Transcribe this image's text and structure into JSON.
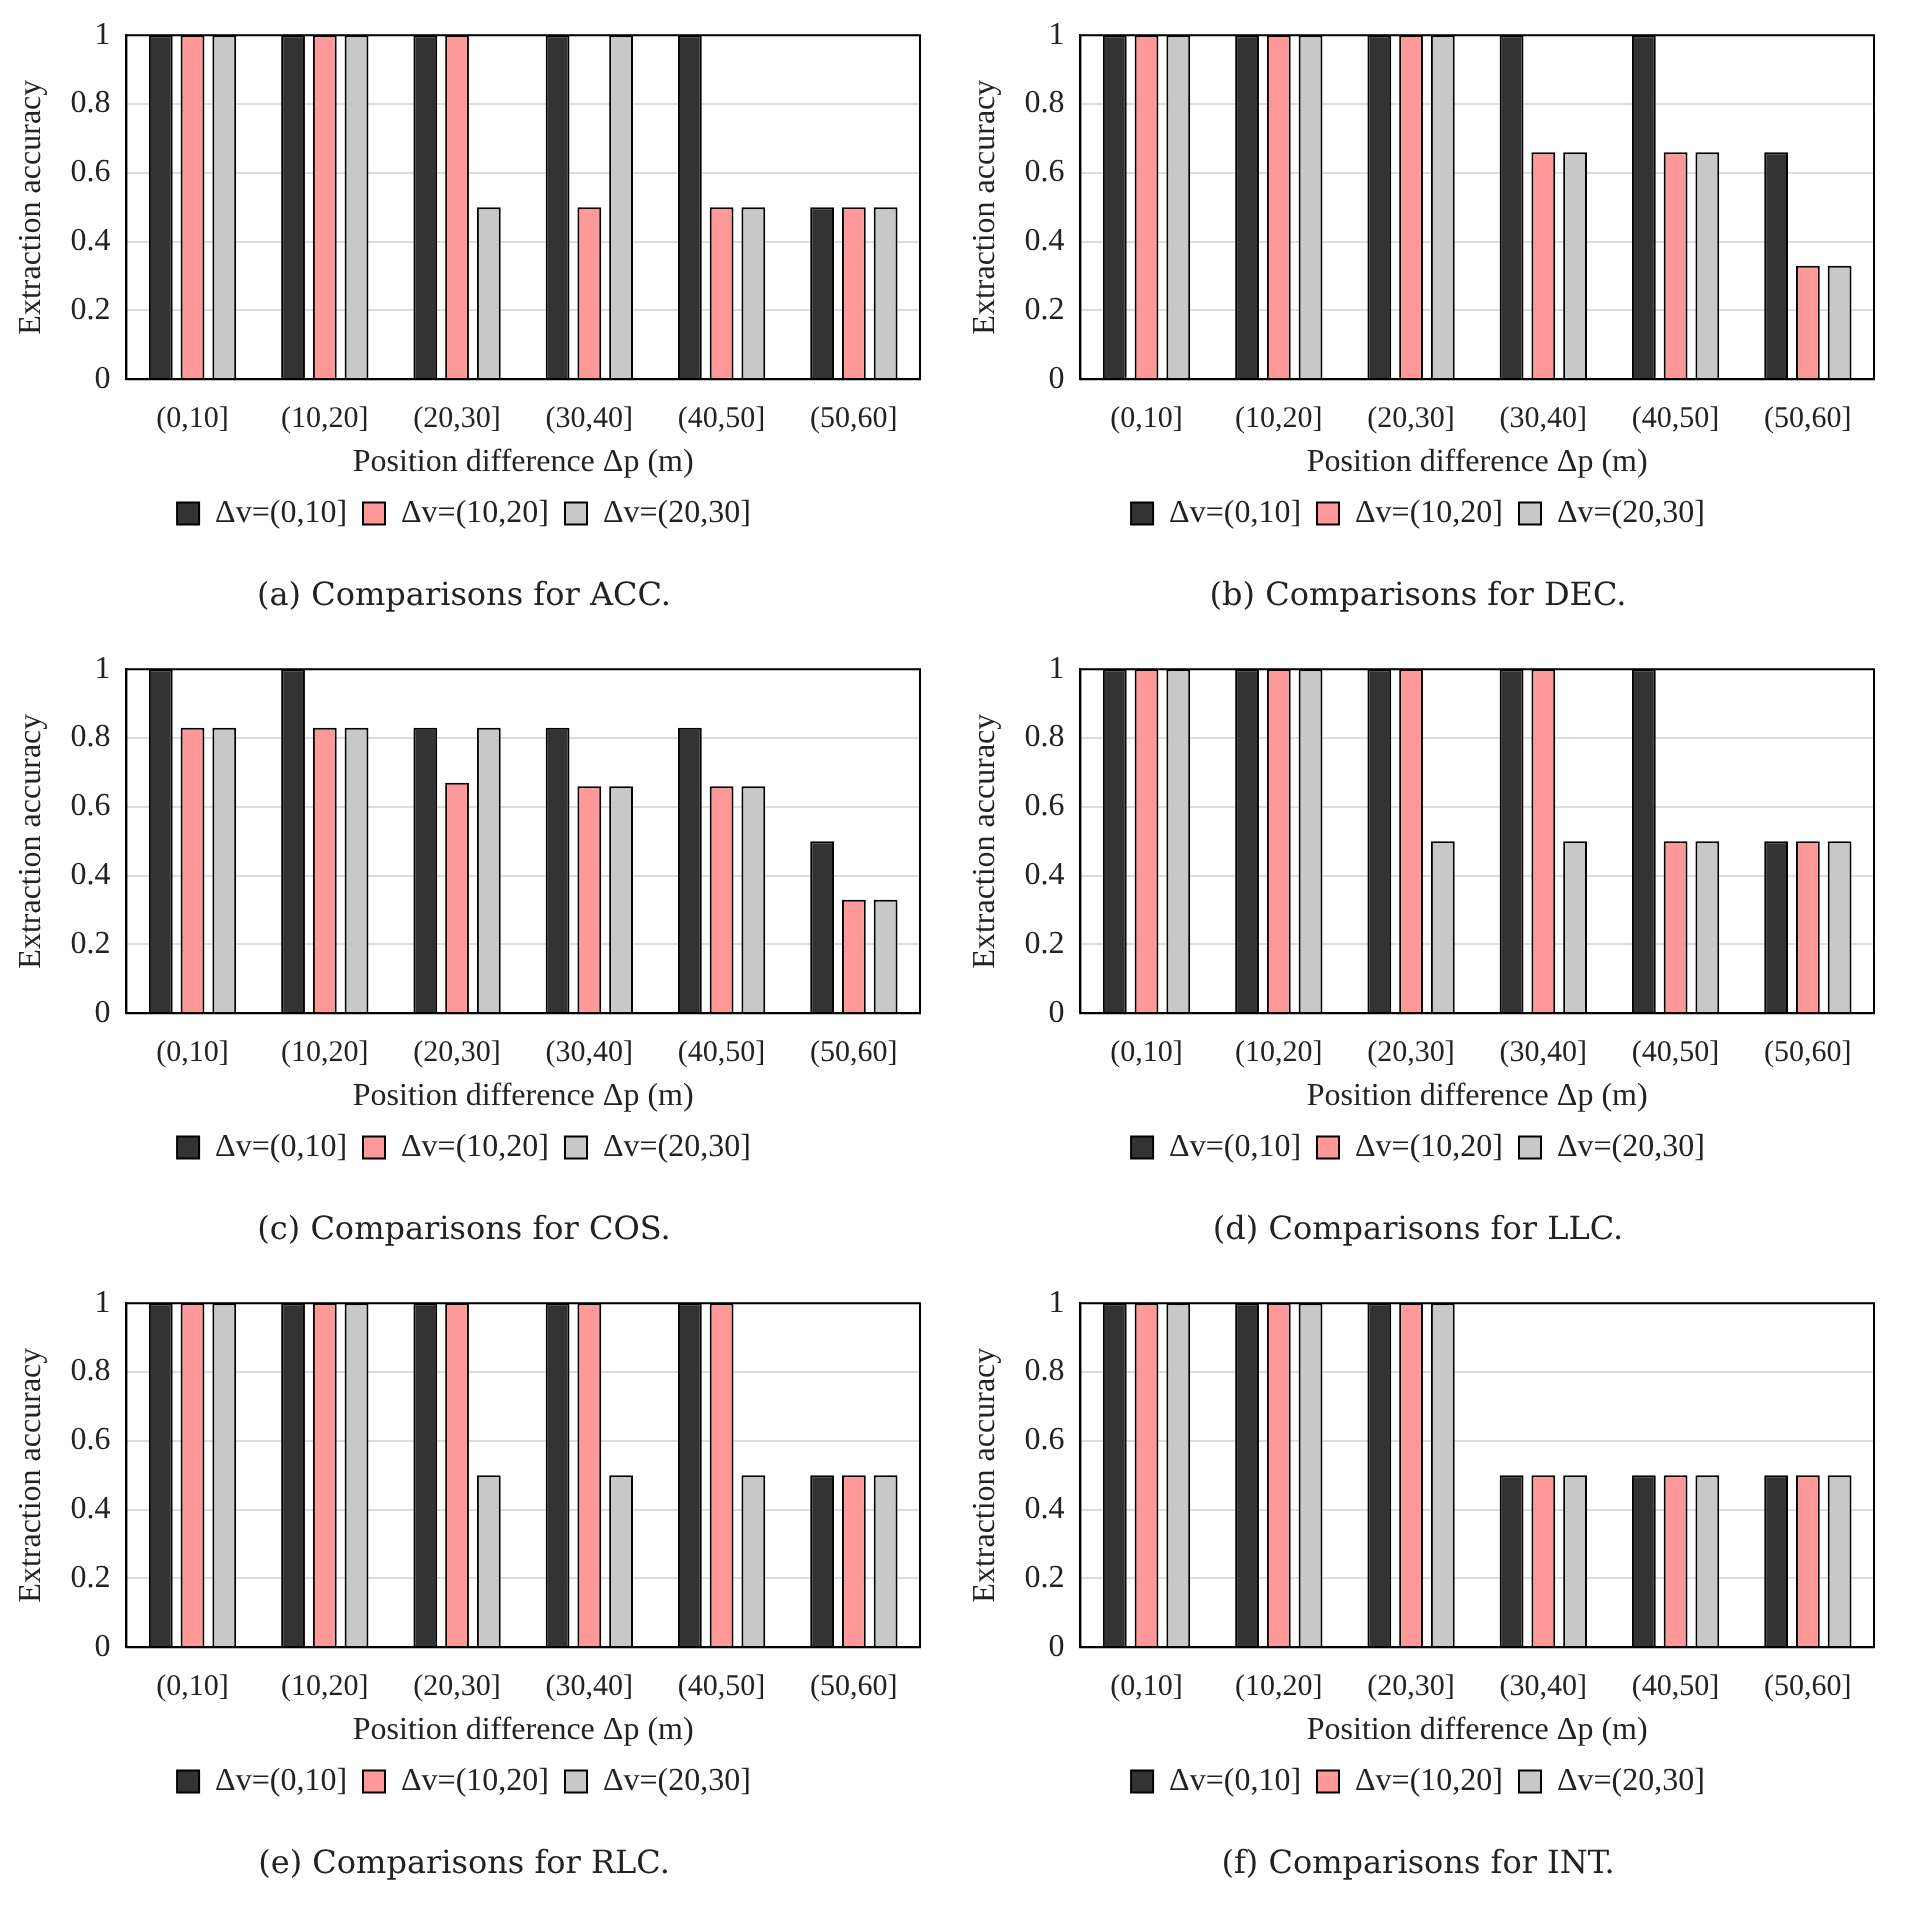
{
  "chart_data": [
    {
      "type": "bar",
      "title": "(a) Comparisons for ACC.",
      "xlabel": "Position difference Δp (m)",
      "ylabel": "Extraction accuracy",
      "categories": [
        "(0,10]",
        "(10,20]",
        "(20,30]",
        "(30,40]",
        "(40,50]",
        "(50,60]"
      ],
      "series": [
        {
          "name": "Δv=(0,10]",
          "color": "#333333",
          "values": [
            1,
            1,
            1,
            1,
            1,
            0.5
          ]
        },
        {
          "name": "Δv=(10,20]",
          "color": "#ff9999",
          "values": [
            1,
            1,
            1,
            0.5,
            0.5,
            0.5
          ]
        },
        {
          "name": "Δv=(20,30]",
          "color": "#c8c8c8",
          "values": [
            1,
            1,
            0.5,
            1,
            0.5,
            0.5
          ]
        }
      ],
      "ylim": [
        0,
        1
      ],
      "yticks": [
        0,
        0.2,
        0.4,
        0.6,
        0.8,
        1
      ],
      "grid": "y",
      "legend": "bottom"
    },
    {
      "type": "bar",
      "title": "(b) Comparisons for DEC.",
      "xlabel": "Position difference Δp (m)",
      "ylabel": "Extraction accuracy",
      "categories": [
        "(0,10]",
        "(10,20]",
        "(20,30]",
        "(30,40]",
        "(40,50]",
        "(50,60]"
      ],
      "series": [
        {
          "name": "Δv=(0,10]",
          "color": "#333333",
          "values": [
            1,
            1,
            1,
            1,
            1,
            0.66
          ]
        },
        {
          "name": "Δv=(10,20]",
          "color": "#ff9999",
          "values": [
            1,
            1,
            1,
            0.66,
            0.66,
            0.33
          ]
        },
        {
          "name": "Δv=(20,30]",
          "color": "#c8c8c8",
          "values": [
            1,
            1,
            1,
            0.66,
            0.66,
            0.33
          ]
        }
      ],
      "ylim": [
        0,
        1
      ],
      "yticks": [
        0,
        0.2,
        0.4,
        0.6,
        0.8,
        1
      ],
      "grid": "y",
      "legend": "bottom"
    },
    {
      "type": "bar",
      "title": "(c) Comparisons for COS.",
      "xlabel": "Position difference Δp (m)",
      "ylabel": "Extraction accuracy",
      "categories": [
        "(0,10]",
        "(10,20]",
        "(20,30]",
        "(30,40]",
        "(40,50]",
        "(50,60]"
      ],
      "series": [
        {
          "name": "Δv=(0,10]",
          "color": "#333333",
          "values": [
            1,
            1,
            0.83,
            0.83,
            0.83,
            0.5
          ]
        },
        {
          "name": "Δv=(10,20]",
          "color": "#ff9999",
          "values": [
            0.83,
            0.83,
            0.67,
            0.66,
            0.66,
            0.33
          ]
        },
        {
          "name": "Δv=(20,30]",
          "color": "#c8c8c8",
          "values": [
            0.83,
            0.83,
            0.83,
            0.66,
            0.66,
            0.33
          ]
        }
      ],
      "ylim": [
        0,
        1
      ],
      "yticks": [
        0,
        0.2,
        0.4,
        0.6,
        0.8,
        1
      ],
      "grid": "y",
      "legend": "bottom"
    },
    {
      "type": "bar",
      "title": "(d) Comparisons for LLC.",
      "xlabel": "Position difference Δp (m)",
      "ylabel": "Extraction accuracy",
      "categories": [
        "(0,10]",
        "(10,20]",
        "(20,30]",
        "(30,40]",
        "(40,50]",
        "(50,60]"
      ],
      "series": [
        {
          "name": "Δv=(0,10]",
          "color": "#333333",
          "values": [
            1,
            1,
            1,
            1,
            1,
            0.5
          ]
        },
        {
          "name": "Δv=(10,20]",
          "color": "#ff9999",
          "values": [
            1,
            1,
            1,
            1,
            0.5,
            0.5
          ]
        },
        {
          "name": "Δv=(20,30]",
          "color": "#c8c8c8",
          "values": [
            1,
            1,
            0.5,
            0.5,
            0.5,
            0.5
          ]
        }
      ],
      "ylim": [
        0,
        1
      ],
      "yticks": [
        0,
        0.2,
        0.4,
        0.6,
        0.8,
        1
      ],
      "grid": "y",
      "legend": "bottom"
    },
    {
      "type": "bar",
      "title": "(e) Comparisons for RLC.",
      "xlabel": "Position difference Δp (m)",
      "ylabel": "Extraction accuracy",
      "categories": [
        "(0,10]",
        "(10,20]",
        "(20,30]",
        "(30,40]",
        "(40,50]",
        "(50,60]"
      ],
      "series": [
        {
          "name": "Δv=(0,10]",
          "color": "#333333",
          "values": [
            1,
            1,
            1,
            1,
            1,
            0.5
          ]
        },
        {
          "name": "Δv=(10,20]",
          "color": "#ff9999",
          "values": [
            1,
            1,
            1,
            1,
            1,
            0.5
          ]
        },
        {
          "name": "Δv=(20,30]",
          "color": "#c8c8c8",
          "values": [
            1,
            1,
            0.5,
            0.5,
            0.5,
            0.5
          ]
        }
      ],
      "ylim": [
        0,
        1
      ],
      "yticks": [
        0,
        0.2,
        0.4,
        0.6,
        0.8,
        1
      ],
      "grid": "y",
      "legend": "bottom"
    },
    {
      "type": "bar",
      "title": "(f) Comparisons for INT.",
      "xlabel": "Position difference Δp (m)",
      "ylabel": "Extraction accuracy",
      "categories": [
        "(0,10]",
        "(10,20]",
        "(20,30]",
        "(30,40]",
        "(40,50]",
        "(50,60]"
      ],
      "series": [
        {
          "name": "Δv=(0,10]",
          "color": "#333333",
          "values": [
            1,
            1,
            1,
            0.5,
            0.5,
            0.5
          ]
        },
        {
          "name": "Δv=(10,20]",
          "color": "#ff9999",
          "values": [
            1,
            1,
            1,
            0.5,
            0.5,
            0.5
          ]
        },
        {
          "name": "Δv=(20,30]",
          "color": "#c8c8c8",
          "values": [
            1,
            1,
            1,
            0.5,
            0.5,
            0.5
          ]
        }
      ],
      "ylim": [
        0,
        1
      ],
      "yticks": [
        0,
        0.2,
        0.4,
        0.6,
        0.8,
        1
      ],
      "grid": "y",
      "legend": "bottom"
    }
  ]
}
